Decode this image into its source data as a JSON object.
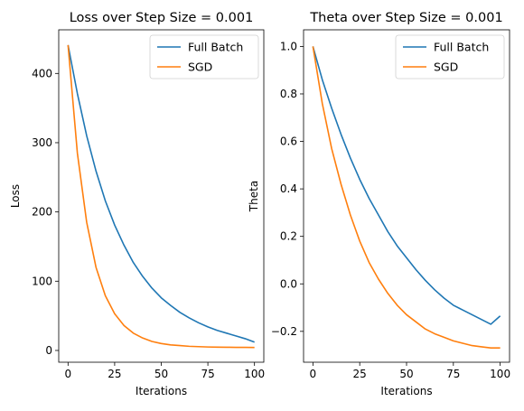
{
  "chart_data": [
    {
      "type": "line",
      "title": "Loss over Step Size = 0.001",
      "xlabel": "Iterations",
      "ylabel": "Loss",
      "xlim": [
        -5,
        105
      ],
      "ylim": [
        -17,
        463
      ],
      "xticks": [
        0,
        25,
        50,
        75,
        100
      ],
      "yticks": [
        0,
        100,
        200,
        300,
        400
      ],
      "legend_position": "top-right",
      "grid": false,
      "x": [
        0,
        5,
        10,
        15,
        20,
        25,
        30,
        35,
        40,
        45,
        50,
        55,
        60,
        65,
        70,
        75,
        80,
        85,
        90,
        95,
        100
      ],
      "series": [
        {
          "name": "Full Batch",
          "color": "#1f77b4",
          "values": [
            441,
            371,
            310,
            259,
            216,
            181,
            152,
            127,
            107,
            90,
            76,
            65,
            55,
            47,
            40,
            34,
            29,
            25,
            21,
            17,
            12
          ]
        },
        {
          "name": "SGD",
          "color": "#ff7f0e",
          "values": [
            441,
            285,
            185,
            120,
            79,
            53,
            36,
            25,
            18,
            13,
            10,
            8,
            7,
            6,
            5.5,
            5,
            4.8,
            4.6,
            4.5,
            4.4,
            4.3
          ]
        }
      ]
    },
    {
      "type": "line",
      "title": "Theta over Step Size = 0.001",
      "xlabel": "Iterations",
      "ylabel": "Theta",
      "xlim": [
        -5,
        105
      ],
      "ylim": [
        -0.33,
        1.07
      ],
      "xticks": [
        0,
        25,
        50,
        75,
        100
      ],
      "yticks": [
        -0.2,
        0.0,
        0.2,
        0.4,
        0.6,
        0.8,
        1.0
      ],
      "ytick_labels": [
        "−0.2",
        "0.0",
        "0.2",
        "0.4",
        "0.6",
        "0.8",
        "1.0"
      ],
      "legend_position": "top-right",
      "grid": false,
      "x": [
        0,
        5,
        10,
        15,
        20,
        25,
        30,
        35,
        40,
        45,
        50,
        55,
        60,
        65,
        70,
        75,
        80,
        85,
        90,
        95,
        100
      ],
      "series": [
        {
          "name": "Full Batch",
          "color": "#1f77b4",
          "values": [
            1.0,
            0.86,
            0.74,
            0.63,
            0.53,
            0.44,
            0.36,
            0.29,
            0.22,
            0.16,
            0.11,
            0.06,
            0.015,
            -0.025,
            -0.06,
            -0.09,
            -0.11,
            -0.13,
            -0.15,
            -0.17,
            -0.135
          ]
        },
        {
          "name": "SGD",
          "color": "#ff7f0e",
          "values": [
            1.0,
            0.76,
            0.57,
            0.42,
            0.29,
            0.18,
            0.09,
            0.02,
            -0.04,
            -0.09,
            -0.13,
            -0.16,
            -0.19,
            -0.21,
            -0.225,
            -0.24,
            -0.25,
            -0.26,
            -0.265,
            -0.27,
            -0.27
          ]
        }
      ]
    }
  ]
}
